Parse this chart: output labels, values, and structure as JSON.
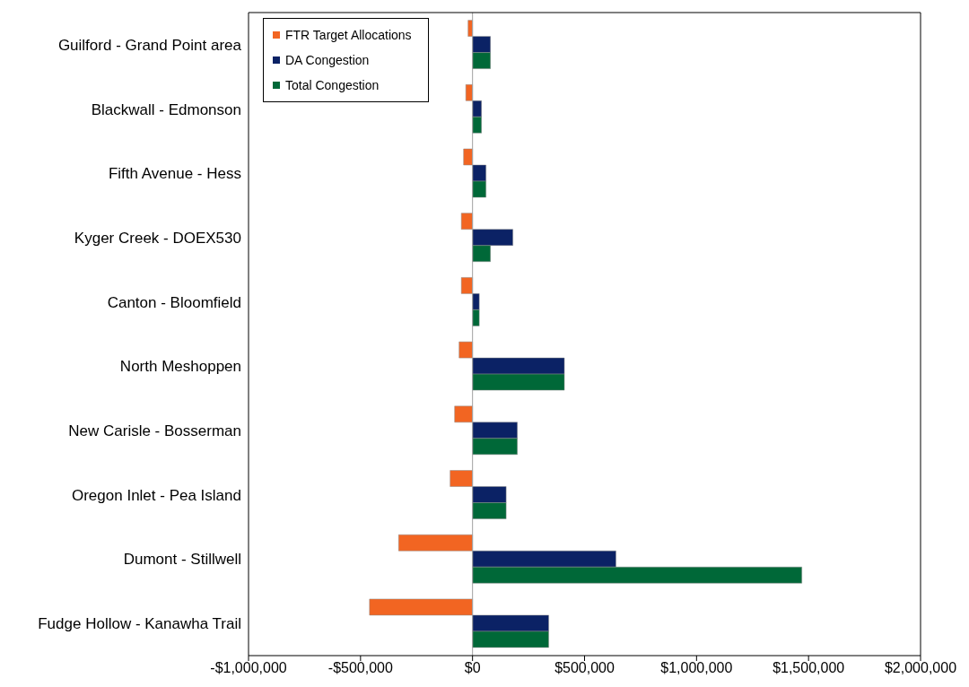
{
  "chart_data": {
    "type": "bar",
    "orientation": "horizontal",
    "categories": [
      "Guilford - Grand Point area",
      "Blackwall - Edmonson",
      "Fifth Avenue - Hess",
      "Kyger Creek - DOEX530",
      "Canton - Bloomfield",
      "North Meshoppen",
      "New Carisle  - Bosserman",
      "Oregon Inlet - Pea Island",
      "Dumont - Stillwell",
      "Fudge Hollow - Kanawha Trail"
    ],
    "series": [
      {
        "name": "FTR Target Allocations",
        "color": "#f26522",
        "values": [
          -20000,
          -30000,
          -40000,
          -50000,
          -50000,
          -60000,
          -80000,
          -100000,
          -330000,
          -460000
        ]
      },
      {
        "name": "DA Congestion",
        "color": "#0b2265",
        "values": [
          80000,
          40000,
          60000,
          180000,
          30000,
          410000,
          200000,
          150000,
          640000,
          340000
        ]
      },
      {
        "name": "Total Congestion",
        "color": "#006838",
        "values": [
          80000,
          40000,
          60000,
          80000,
          30000,
          410000,
          200000,
          150000,
          1470000,
          340000
        ]
      }
    ],
    "xlim": [
      -1000000,
      2000000
    ],
    "xticks": [
      {
        "value": -1000000,
        "label": "-$1,000,000"
      },
      {
        "value": -500000,
        "label": "-$500,000"
      },
      {
        "value": 0,
        "label": "$0"
      },
      {
        "value": 500000,
        "label": "$500,000"
      },
      {
        "value": 1000000,
        "label": "$1,000,000"
      },
      {
        "value": 1500000,
        "label": "$1,500,000"
      },
      {
        "value": 2000000,
        "label": "$2,000,000"
      }
    ],
    "ref_lines": [
      {
        "axis": "x",
        "value": 0,
        "color": "#a0a0a0"
      }
    ],
    "grid": false,
    "legend": "top left"
  }
}
